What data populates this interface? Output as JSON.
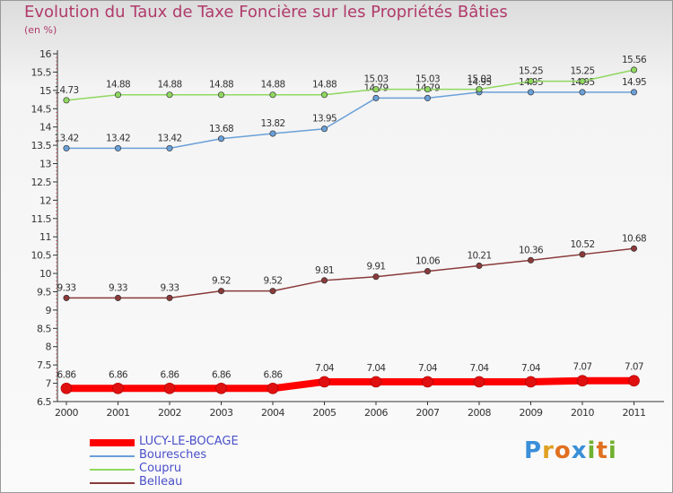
{
  "title": "Evolution du Taux de Taxe Foncière sur les Propriétés Bâties",
  "subtitle": "(en %)",
  "logo": {
    "letters": [
      "P",
      "r",
      "o",
      "x",
      "i",
      "t",
      "i"
    ],
    "colors": [
      "#3a8fd8",
      "#e0a020",
      "#e07020",
      "#3a8fd8",
      "#70b030",
      "#e07020",
      "#70b030"
    ]
  },
  "chart_data": {
    "type": "line",
    "title": "Evolution du Taux de Taxe Foncière sur les Propriétés Bâties",
    "ylabel": "(en %)",
    "x": [
      "2000",
      "2001",
      "2002",
      "2003",
      "2004",
      "2005",
      "2006",
      "2007",
      "2008",
      "2009",
      "2010",
      "2011"
    ],
    "ylim": [
      6.5,
      16
    ],
    "yticks": [
      "6.5",
      "7",
      "7.5",
      "8",
      "8.5",
      "9",
      "9.5",
      "10",
      "10.5",
      "11",
      "11.5",
      "12",
      "12.5",
      "13",
      "13.5",
      "14",
      "14.5",
      "15",
      "15.5",
      "16"
    ],
    "grid": false,
    "legend": "bottom-left",
    "series": [
      {
        "name": "LUCY-LE-BOCAGE",
        "color": "#ff0000",
        "thick": true,
        "values": [
          6.86,
          6.86,
          6.86,
          6.86,
          6.86,
          7.04,
          7.04,
          7.04,
          7.04,
          7.04,
          7.07,
          7.07
        ],
        "labels": [
          "6.86",
          "6.86",
          "6.86",
          "6.86",
          "6.86",
          "7.04",
          "7.04",
          "7.04",
          "7.04",
          "7.04",
          "7.07",
          "7.07"
        ]
      },
      {
        "name": "Bouresches",
        "color": "#6aa0d8",
        "thick": false,
        "values": [
          13.42,
          13.42,
          13.42,
          13.68,
          13.82,
          13.95,
          14.79,
          14.79,
          14.95,
          14.95,
          14.95,
          14.95
        ],
        "labels": [
          "13.42",
          "13.42",
          "13.42",
          "13.68",
          "13.82",
          "13.95",
          "14.79",
          "14.79",
          "14.95",
          "14.95",
          "14.95",
          "14.95"
        ]
      },
      {
        "name": "Coupru",
        "color": "#90d860",
        "thick": false,
        "values": [
          14.73,
          14.88,
          14.88,
          14.88,
          14.88,
          14.88,
          15.03,
          15.03,
          15.03,
          15.25,
          15.25,
          15.56
        ],
        "labels": [
          "14.73",
          "14.88",
          "14.88",
          "14.88",
          "14.88",
          "14.88",
          "15.03",
          "15.03",
          "15.03",
          "15.25",
          "15.25",
          "15.56"
        ]
      },
      {
        "name": "Belleau",
        "color": "#8b3a3a",
        "thick": false,
        "values": [
          9.33,
          9.33,
          9.33,
          9.52,
          9.52,
          9.81,
          9.91,
          10.06,
          10.21,
          10.36,
          10.52,
          10.68
        ],
        "labels": [
          "9.33",
          "9.33",
          "9.33",
          "9.52",
          "9.52",
          "9.81",
          "9.91",
          "10.06",
          "10.21",
          "10.36",
          "10.52",
          "10.68"
        ]
      }
    ]
  }
}
